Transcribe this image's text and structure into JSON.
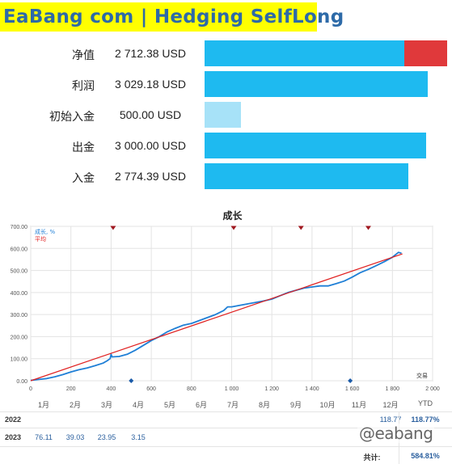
{
  "header": {
    "title": "EaBang com | Hedging SelfLong"
  },
  "stats": [
    {
      "label": "净值",
      "value": "2 712.38 USD",
      "bar_fraction": 0.875,
      "neg_fraction": 0.19,
      "color": "#1ebaf0"
    },
    {
      "label": "利润",
      "value": "3 029.18 USD",
      "bar_fraction": 0.98,
      "neg_fraction": 0,
      "color": "#1ebaf0"
    },
    {
      "label": "初始入金",
      "value": "500.00 USD",
      "bar_fraction": 0.16,
      "neg_fraction": 0,
      "color": "#a7e2f8"
    },
    {
      "label": "出金",
      "value": "3 000.00 USD",
      "bar_fraction": 0.97,
      "neg_fraction": 0,
      "color": "#1ebaf0"
    },
    {
      "label": "入金",
      "value": "2 774.39 USD",
      "bar_fraction": 0.895,
      "neg_fraction": 0,
      "color": "#1ebaf0"
    }
  ],
  "chart_data": {
    "type": "line",
    "title": "成长",
    "xlabel": "交易",
    "ylabel": "",
    "xlim": [
      0,
      2000
    ],
    "ylim": [
      0,
      700
    ],
    "x_ticks": [
      0,
      200,
      400,
      600,
      800,
      1000,
      1200,
      1400,
      1600,
      1800,
      2000
    ],
    "x_tick_labels": [
      "0",
      "200",
      "400",
      "600",
      "800",
      "1 000",
      "1 200",
      "1 400",
      "1 600",
      "1 800",
      "2 000"
    ],
    "y_ticks": [
      0,
      100,
      200,
      300,
      400,
      500,
      600,
      700
    ],
    "y_tick_labels": [
      "0.00",
      "100.00",
      "200.00",
      "300.00",
      "400.00",
      "500.00",
      "600.00",
      "700.00"
    ],
    "grid": true,
    "legend_position": "top-left",
    "series": [
      {
        "name": "成长, %",
        "color": "#1f7fd6",
        "points": [
          [
            0,
            2
          ],
          [
            40,
            6
          ],
          [
            80,
            10
          ],
          [
            120,
            18
          ],
          [
            160,
            28
          ],
          [
            200,
            40
          ],
          [
            240,
            50
          ],
          [
            280,
            58
          ],
          [
            320,
            68
          ],
          [
            360,
            80
          ],
          [
            380,
            90
          ],
          [
            395,
            100
          ],
          [
            400,
            120
          ],
          [
            405,
            108
          ],
          [
            440,
            110
          ],
          [
            480,
            120
          ],
          [
            520,
            138
          ],
          [
            560,
            160
          ],
          [
            600,
            182
          ],
          [
            640,
            200
          ],
          [
            680,
            222
          ],
          [
            720,
            238
          ],
          [
            760,
            252
          ],
          [
            800,
            260
          ],
          [
            860,
            280
          ],
          [
            920,
            300
          ],
          [
            960,
            318
          ],
          [
            980,
            335
          ],
          [
            1000,
            335
          ],
          [
            1040,
            342
          ],
          [
            1100,
            352
          ],
          [
            1160,
            362
          ],
          [
            1200,
            370
          ],
          [
            1240,
            385
          ],
          [
            1280,
            400
          ],
          [
            1320,
            410
          ],
          [
            1360,
            420
          ],
          [
            1400,
            425
          ],
          [
            1440,
            430
          ],
          [
            1480,
            430
          ],
          [
            1520,
            440
          ],
          [
            1560,
            452
          ],
          [
            1600,
            470
          ],
          [
            1640,
            490
          ],
          [
            1680,
            505
          ],
          [
            1720,
            522
          ],
          [
            1760,
            540
          ],
          [
            1800,
            560
          ],
          [
            1830,
            582
          ],
          [
            1845,
            578
          ]
        ]
      },
      {
        "name": "平均",
        "color": "#e02020",
        "points": [
          [
            0,
            0
          ],
          [
            1850,
            575
          ]
        ]
      }
    ],
    "markers_top": [
      410,
      1010,
      1345,
      1680
    ],
    "markers_bottom": [
      500,
      1590
    ]
  },
  "performance": {
    "months": [
      "1月",
      "2月",
      "3月",
      "4月",
      "5月",
      "6月",
      "7月",
      "8月",
      "9月",
      "10月",
      "11月",
      "12月"
    ],
    "ytd_label": "YTD",
    "rows": [
      {
        "year": "2022",
        "values": [
          "",
          "",
          "",
          "",
          "",
          "",
          "",
          "",
          "",
          "",
          "",
          "118.77"
        ],
        "ytd": "118.77%"
      },
      {
        "year": "2023",
        "values": [
          "76.11",
          "39.03",
          "23.95",
          "3.15",
          "",
          "",
          "",
          "",
          "",
          "",
          "",
          ""
        ],
        "ytd": ""
      }
    ],
    "total_label": "共计:",
    "total_value": "584.81%"
  },
  "watermark": {
    "text": "@eabang"
  }
}
